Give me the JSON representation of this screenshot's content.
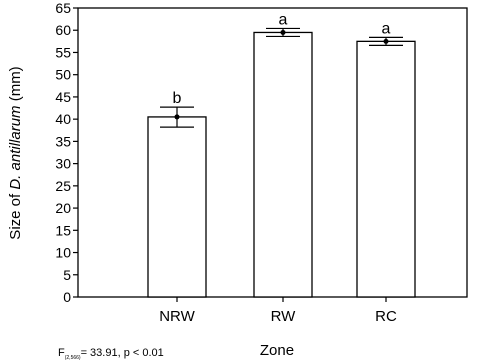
{
  "chart_data": {
    "type": "bar",
    "categories": [
      "NRW",
      "RW",
      "RC"
    ],
    "values": [
      40.5,
      59.5,
      57.5
    ],
    "errors_low": [
      38.2,
      58.6,
      56.6
    ],
    "errors_high": [
      42.7,
      60.4,
      58.4
    ],
    "significance": [
      "b",
      "a",
      "a"
    ],
    "xlabel": "Zone",
    "ylabel_prefix": "Size of ",
    "ylabel_species": "D. antillarum",
    "ylabel_suffix": " (mm)",
    "ylim": [
      0,
      65
    ],
    "yticks": [
      "0",
      "5",
      "10",
      "15",
      "20",
      "25",
      "30",
      "35",
      "40",
      "45",
      "50",
      "55",
      "60",
      "65"
    ],
    "grid": false,
    "legend": "none"
  },
  "stats": {
    "prefix": "F",
    "df": "(2,566)",
    "rest": "= 33.91, p < 0.01"
  }
}
